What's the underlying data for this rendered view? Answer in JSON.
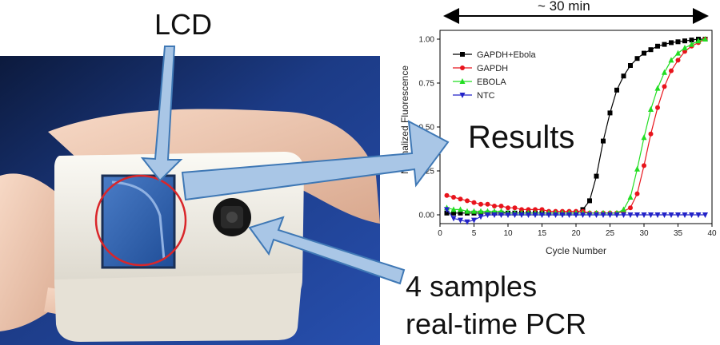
{
  "labels": {
    "lcd": "LCD",
    "results": "Results",
    "samples_line1": "4 samples",
    "samples_line2": "real-time PCR",
    "duration": "~ 30 min"
  },
  "colors": {
    "arrow_fill": "#a9c6e6",
    "arrow_stroke": "#3f78b5",
    "lcd_circle": "#d9262a",
    "lcd_screen": "#2f5fa8",
    "device_body": "#f1eee7",
    "background_cloth": "#1f3f8f"
  },
  "chart_data": {
    "type": "line",
    "xlabel": "Cycle Number",
    "ylabel": "Normalized Fluorescence",
    "xlim": [
      0,
      40
    ],
    "ylim": [
      -0.05,
      1.05
    ],
    "xticks": [
      "0",
      "5",
      "10",
      "15",
      "20",
      "25",
      "30",
      "35",
      "40"
    ],
    "yticks": [
      "0.00",
      "0.25",
      "0.50",
      "0.75",
      "1.00"
    ],
    "legend": "top-left",
    "series": [
      {
        "name": "GAPDH+Ebola",
        "color": "#000000",
        "marker": "square",
        "x": [
          1,
          2,
          3,
          4,
          5,
          6,
          7,
          8,
          9,
          10,
          11,
          12,
          13,
          14,
          15,
          16,
          17,
          18,
          19,
          20,
          21,
          22,
          23,
          24,
          25,
          26,
          27,
          28,
          29,
          30,
          31,
          32,
          33,
          34,
          35,
          36,
          37,
          38,
          39
        ],
        "y": [
          0.01,
          0.01,
          0.01,
          0.01,
          0.01,
          0.01,
          0.01,
          0.01,
          0.01,
          0.01,
          0.01,
          0.01,
          0.01,
          0.01,
          0.01,
          0.01,
          0.01,
          0.01,
          0.01,
          0.01,
          0.03,
          0.08,
          0.22,
          0.42,
          0.58,
          0.71,
          0.79,
          0.85,
          0.89,
          0.92,
          0.94,
          0.96,
          0.97,
          0.98,
          0.985,
          0.99,
          0.995,
          1.0,
          1.0
        ]
      },
      {
        "name": "GAPDH",
        "color": "#e8141c",
        "marker": "circle",
        "x": [
          1,
          2,
          3,
          4,
          5,
          6,
          7,
          8,
          9,
          10,
          11,
          12,
          13,
          14,
          15,
          16,
          17,
          18,
          19,
          20,
          21,
          22,
          23,
          24,
          25,
          26,
          27,
          28,
          29,
          30,
          31,
          32,
          33,
          34,
          35,
          36,
          37,
          38,
          39
        ],
        "y": [
          0.11,
          0.1,
          0.09,
          0.08,
          0.07,
          0.06,
          0.06,
          0.05,
          0.05,
          0.04,
          0.04,
          0.03,
          0.03,
          0.03,
          0.03,
          0.02,
          0.02,
          0.02,
          0.02,
          0.02,
          0.02,
          0.01,
          0.01,
          0.01,
          0.01,
          0.01,
          0.02,
          0.04,
          0.12,
          0.28,
          0.46,
          0.61,
          0.73,
          0.82,
          0.88,
          0.93,
          0.96,
          0.98,
          1.0
        ]
      },
      {
        "name": "EBOLA",
        "color": "#22dd22",
        "marker": "triangle-up",
        "x": [
          1,
          2,
          3,
          4,
          5,
          6,
          7,
          8,
          9,
          10,
          11,
          12,
          13,
          14,
          15,
          16,
          17,
          18,
          19,
          20,
          21,
          22,
          23,
          24,
          25,
          26,
          27,
          28,
          29,
          30,
          31,
          32,
          33,
          34,
          35,
          36,
          37,
          38,
          39
        ],
        "y": [
          0.04,
          0.03,
          0.03,
          0.02,
          0.02,
          0.02,
          0.02,
          0.02,
          0.02,
          0.01,
          0.01,
          0.01,
          0.01,
          0.01,
          0.01,
          0.01,
          0.01,
          0.01,
          0.01,
          0.01,
          0.01,
          0.01,
          0.01,
          0.01,
          0.01,
          0.01,
          0.03,
          0.1,
          0.26,
          0.44,
          0.6,
          0.72,
          0.81,
          0.88,
          0.92,
          0.95,
          0.97,
          0.99,
          1.0
        ]
      },
      {
        "name": "NTC",
        "color": "#2222c8",
        "marker": "triangle-down",
        "x": [
          1,
          2,
          3,
          4,
          5,
          6,
          7,
          8,
          9,
          10,
          11,
          12,
          13,
          14,
          15,
          16,
          17,
          18,
          19,
          20,
          21,
          22,
          23,
          24,
          25,
          26,
          27,
          28,
          29,
          30,
          31,
          32,
          33,
          34,
          35,
          36,
          37,
          38,
          39
        ],
        "y": [
          0.03,
          -0.02,
          -0.03,
          -0.04,
          -0.03,
          -0.01,
          0.0,
          0.0,
          0.0,
          0.0,
          0.0,
          0.0,
          0.0,
          0.0,
          0.0,
          0.0,
          0.0,
          0.0,
          0.0,
          0.0,
          0.0,
          0.0,
          0.0,
          0.0,
          0.0,
          0.0,
          0.0,
          0.0,
          0.0,
          0.0,
          0.0,
          0.0,
          0.0,
          0.0,
          0.0,
          0.0,
          0.0,
          0.0,
          0.0
        ]
      }
    ]
  }
}
